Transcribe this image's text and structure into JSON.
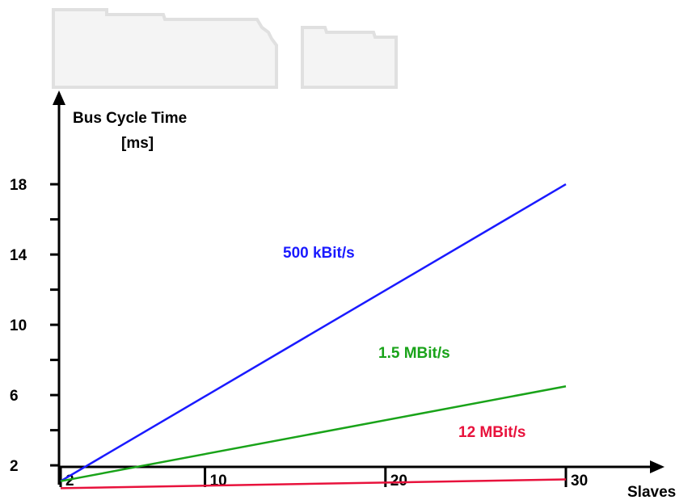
{
  "chart_data": {
    "type": "line",
    "ylabel_line1": "Bus Cycle Time",
    "ylabel_line2": "[ms]",
    "xlabel": "Slaves",
    "x_ticks": [
      2,
      10,
      20,
      30
    ],
    "y_ticks": [
      2,
      6,
      10,
      14,
      18
    ],
    "xlim": [
      2,
      30
    ],
    "ylim": [
      0,
      20
    ],
    "series": [
      {
        "name": "500 kBit/s",
        "color": "#1a1aff",
        "x": [
          2,
          30
        ],
        "y": [
          1.1,
          18
        ]
      },
      {
        "name": "1.5 MBit/s",
        "color": "#19a319",
        "x": [
          2,
          30
        ],
        "y": [
          1.1,
          6.5
        ]
      },
      {
        "name": "12 MBit/s",
        "color": "#e8123c",
        "x": [
          2,
          30
        ],
        "y": [
          0.7,
          1.2
        ]
      }
    ]
  },
  "colors": {
    "axis": "#000000",
    "background": "#ffffff"
  }
}
